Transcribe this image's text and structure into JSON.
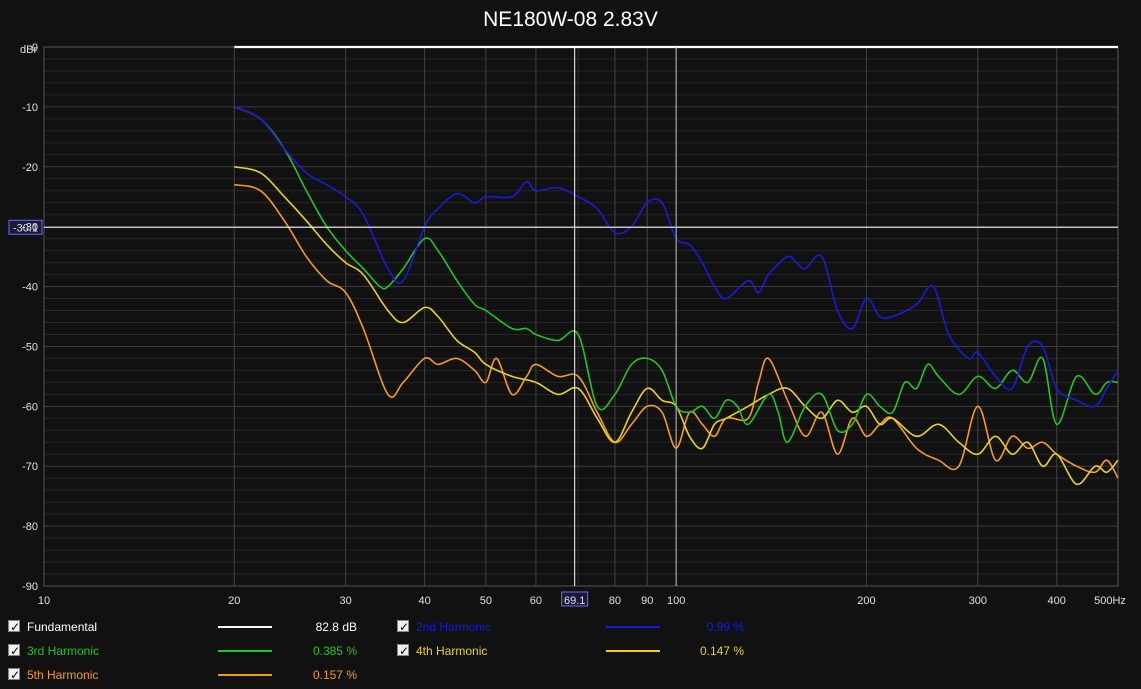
{
  "title": "NE180W-08 2.83V",
  "chart_data": {
    "type": "line",
    "ylabel": "dBr",
    "xscale": "log",
    "xlim": [
      10,
      500
    ],
    "ylim": [
      -90,
      0
    ],
    "xticks": [
      10,
      20,
      30,
      40,
      50,
      60,
      80,
      90,
      100,
      200,
      300,
      400,
      500
    ],
    "xtick_labels": [
      "10",
      "20",
      "30",
      "40",
      "50",
      "60",
      "80",
      "90",
      "100",
      "200",
      "300",
      "400",
      "500Hz"
    ],
    "yticks": [
      0,
      -10,
      -20,
      -30,
      -40,
      -50,
      -60,
      -70,
      -80,
      -90
    ],
    "ytick_labels": [
      "0",
      "-10",
      "-20",
      "-30",
      "-40",
      "-50",
      "-60",
      "-70",
      "-80",
      "-90"
    ],
    "grid": true,
    "cursor": {
      "x": 69.1,
      "y": -30.1,
      "x_label": "69.1",
      "y_label": "-30.1"
    },
    "series": [
      {
        "name": "Fundamental",
        "color": "#ffffff",
        "readout": "82.8 dB",
        "x": [
          20,
          500
        ],
        "y": [
          0,
          0
        ]
      },
      {
        "name": "2nd Harmonic",
        "color": "#1a1adc",
        "readout": "0.99 %",
        "x": [
          20,
          22,
          24,
          26,
          28,
          30,
          32,
          35,
          37,
          40,
          42,
          45,
          48,
          50,
          55,
          58,
          60,
          65,
          70,
          75,
          80,
          85,
          90,
          95,
          100,
          105,
          110,
          115,
          120,
          130,
          135,
          140,
          150,
          155,
          160,
          170,
          180,
          190,
          200,
          210,
          220,
          240,
          255,
          270,
          290,
          300,
          320,
          340,
          360,
          380,
          400,
          430,
          460,
          480,
          500
        ],
        "y": [
          -10,
          -12,
          -17,
          -21,
          -23,
          -25,
          -28,
          -37,
          -39,
          -30,
          -27,
          -24.5,
          -26,
          -25,
          -25,
          -22.5,
          -24,
          -23.5,
          -25,
          -27,
          -31,
          -30,
          -26,
          -26,
          -32,
          -33,
          -36,
          -40,
          -42,
          -39,
          -41,
          -38,
          -35,
          -36,
          -37,
          -35,
          -44,
          -47,
          -42,
          -45,
          -45,
          -43,
          -40,
          -48,
          -52,
          -51,
          -55,
          -57,
          -50,
          -50,
          -57,
          -59,
          -60,
          -57,
          -54
        ]
      },
      {
        "name": "3rd Harmonic",
        "color": "#22c422",
        "readout": "0.385 %",
        "x": [
          20,
          22,
          24,
          26,
          28,
          30,
          32,
          34,
          35,
          37,
          40,
          42,
          45,
          48,
          50,
          55,
          58,
          60,
          65,
          70,
          75,
          80,
          85,
          90,
          95,
          100,
          105,
          110,
          115,
          120,
          125,
          130,
          140,
          145,
          150,
          160,
          170,
          180,
          190,
          200,
          210,
          220,
          230,
          240,
          250,
          260,
          280,
          300,
          320,
          340,
          360,
          380,
          400,
          430,
          460,
          480,
          500
        ],
        "y": [
          -10,
          -12,
          -17,
          -24,
          -30,
          -34,
          -37,
          -40,
          -40,
          -37,
          -32,
          -34,
          -39,
          -43,
          -44,
          -47,
          -47,
          -48,
          -49,
          -48,
          -60,
          -58,
          -53,
          -52,
          -54,
          -60,
          -61,
          -60,
          -62,
          -59,
          -60,
          -63,
          -58,
          -61,
          -66,
          -60,
          -58,
          -64,
          -63,
          -58,
          -60,
          -61,
          -56,
          -57,
          -53,
          -55,
          -58,
          -55,
          -57,
          -54,
          -56,
          -52,
          -63,
          -55,
          -58,
          -56,
          -56
        ]
      },
      {
        "name": "4th Harmonic",
        "color": "#e8d21a",
        "readout": "0.147 %",
        "x": [
          20,
          22,
          24,
          26,
          28,
          30,
          32,
          35,
          37,
          40,
          42,
          45,
          48,
          50,
          55,
          60,
          65,
          70,
          75,
          80,
          85,
          90,
          95,
          100,
          105,
          110,
          115,
          120,
          130,
          140,
          150,
          160,
          170,
          180,
          190,
          200,
          210,
          220,
          240,
          260,
          280,
          300,
          320,
          340,
          360,
          380,
          400,
          430,
          460,
          480,
          500
        ],
        "y": [
          -20,
          -21,
          -25,
          -29,
          -33,
          -36,
          -38,
          -44,
          -46,
          -43.5,
          -45,
          -49,
          -51,
          -53,
          -55,
          -56,
          -58,
          -57,
          -62,
          -66,
          -61,
          -57,
          -59,
          -60,
          -65,
          -67,
          -63,
          -62,
          -60,
          -58,
          -57,
          -60,
          -62,
          -59,
          -61,
          -60,
          -63,
          -62,
          -65,
          -63,
          -66,
          -68,
          -65,
          -68,
          -66,
          -70,
          -68,
          -73,
          -70,
          -71,
          -69
        ]
      },
      {
        "name": "5th Harmonic",
        "color": "#f59a1e",
        "readout": "0.157 %",
        "x": [
          20,
          22,
          24,
          26,
          28,
          30,
          32,
          35,
          37,
          40,
          42,
          45,
          48,
          50,
          52,
          55,
          58,
          60,
          65,
          70,
          75,
          80,
          85,
          90,
          95,
          100,
          105,
          110,
          115,
          120,
          130,
          135,
          140,
          150,
          160,
          170,
          180,
          190,
          200,
          210,
          220,
          240,
          260,
          280,
          300,
          320,
          340,
          360,
          380,
          400,
          430,
          460,
          480,
          500
        ],
        "y": [
          -23,
          -24,
          -29,
          -35,
          -39,
          -41,
          -47,
          -58,
          -56,
          -52,
          -53,
          -52,
          -54,
          -56,
          -52,
          -58,
          -55,
          -53,
          -55,
          -55,
          -61,
          -66,
          -63,
          -60,
          -61,
          -67,
          -61,
          -63,
          -65,
          -62,
          -62,
          -56,
          -52,
          -59,
          -65,
          -61,
          -68,
          -62,
          -65,
          -63,
          -62,
          -67,
          -69,
          -70,
          -60,
          -69,
          -65,
          -67,
          -66,
          -68,
          -70,
          -71,
          -69,
          -72
        ]
      }
    ]
  }
}
